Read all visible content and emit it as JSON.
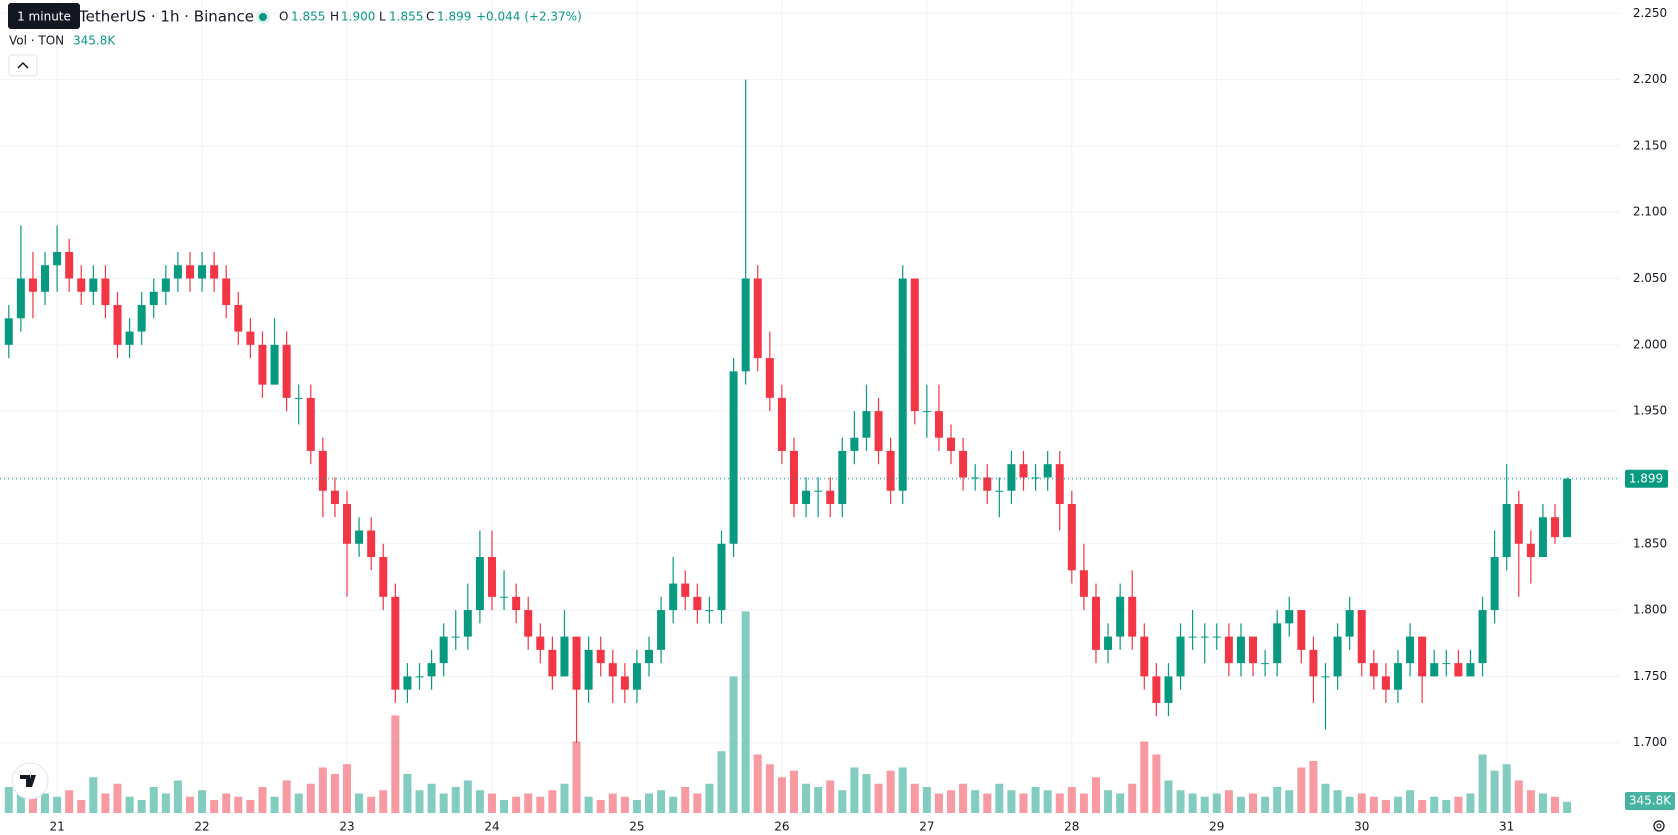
{
  "header": {
    "tooltip": "1 minute",
    "symbol": "TetherUS · 1h · Binance",
    "o_label": "O",
    "o_value": "1.855",
    "h_label": "H",
    "h_value": "1.900",
    "l_label": "L",
    "l_value": "1.855",
    "c_label": "C",
    "c_value": "1.899",
    "change": "+0.044 (+2.37%)",
    "vol_name": "Vol · TON",
    "vol_value": "345.8K"
  },
  "chart_data": {
    "type": "candlestick",
    "categories": [
      null,
      null,
      null,
      null,
      "21",
      null,
      null,
      null,
      null,
      null,
      null,
      null,
      null,
      null,
      null,
      null,
      "22",
      null,
      null,
      null,
      null,
      null,
      null,
      null,
      null,
      null,
      null,
      null,
      "23",
      null,
      null,
      null,
      null,
      null,
      null,
      null,
      null,
      null,
      null,
      null,
      "24",
      null,
      null,
      null,
      null,
      null,
      null,
      null,
      null,
      null,
      null,
      null,
      "25",
      null,
      null,
      null,
      null,
      null,
      null,
      null,
      null,
      null,
      null,
      null,
      "26",
      null,
      null,
      null,
      null,
      null,
      null,
      null,
      null,
      null,
      null,
      null,
      "27",
      null,
      null,
      null,
      null,
      null,
      null,
      null,
      null,
      null,
      null,
      null,
      "28",
      null,
      null,
      null,
      null,
      null,
      null,
      null,
      null,
      null,
      null,
      null,
      "29",
      null,
      null,
      null,
      null,
      null,
      null,
      null,
      null,
      null,
      null,
      null,
      "30",
      null,
      null,
      null,
      null,
      null,
      null,
      null,
      null,
      null,
      null,
      null,
      "31",
      null,
      null,
      null,
      null,
      null
    ],
    "open": [
      2.0,
      2.02,
      2.05,
      2.04,
      2.06,
      2.07,
      2.05,
      2.04,
      2.05,
      2.03,
      2.0,
      2.01,
      2.03,
      2.04,
      2.05,
      2.06,
      2.05,
      2.06,
      2.05,
      2.03,
      2.01,
      2.0,
      1.97,
      2.0,
      1.96,
      1.96,
      1.92,
      1.89,
      1.88,
      1.85,
      1.86,
      1.84,
      1.81,
      1.74,
      1.75,
      1.75,
      1.76,
      1.78,
      1.78,
      1.8,
      1.84,
      1.81,
      1.81,
      1.8,
      1.78,
      1.77,
      1.75,
      1.78,
      1.74,
      1.77,
      1.76,
      1.75,
      1.74,
      1.76,
      1.77,
      1.8,
      1.82,
      1.81,
      1.8,
      1.8,
      1.85,
      1.98,
      2.05,
      1.99,
      1.96,
      1.92,
      1.88,
      1.89,
      1.89,
      1.88,
      1.92,
      1.93,
      1.95,
      1.92,
      1.89,
      2.05,
      1.95,
      1.95,
      1.93,
      1.92,
      1.9,
      1.9,
      1.89,
      1.89,
      1.91,
      1.9,
      1.9,
      1.91,
      1.88,
      1.83,
      1.81,
      1.77,
      1.78,
      1.81,
      1.78,
      1.75,
      1.73,
      1.75,
      1.78,
      1.78,
      1.78,
      1.78,
      1.76,
      1.78,
      1.76,
      1.76,
      1.79,
      1.8,
      1.77,
      1.75,
      1.75,
      1.78,
      1.8,
      1.76,
      1.75,
      1.74,
      1.76,
      1.78,
      1.75,
      1.76,
      1.76,
      1.75,
      1.76,
      1.8,
      1.84,
      1.88,
      1.85,
      1.84,
      1.87,
      1.855
    ],
    "high": [
      2.03,
      2.09,
      2.07,
      2.07,
      2.09,
      2.08,
      2.06,
      2.06,
      2.06,
      2.04,
      2.02,
      2.04,
      2.05,
      2.06,
      2.07,
      2.07,
      2.07,
      2.07,
      2.06,
      2.04,
      2.02,
      2.01,
      2.02,
      2.01,
      1.97,
      1.97,
      1.93,
      1.9,
      1.89,
      1.87,
      1.87,
      1.85,
      1.82,
      1.76,
      1.76,
      1.77,
      1.79,
      1.8,
      1.82,
      1.86,
      1.86,
      1.83,
      1.82,
      1.81,
      1.79,
      1.78,
      1.8,
      1.78,
      1.78,
      1.78,
      1.77,
      1.76,
      1.77,
      1.78,
      1.81,
      1.84,
      1.83,
      1.82,
      1.81,
      1.86,
      1.99,
      2.2,
      2.06,
      2.01,
      1.97,
      1.93,
      1.9,
      1.9,
      1.9,
      1.93,
      1.95,
      1.97,
      1.96,
      1.93,
      2.06,
      2.05,
      1.97,
      1.97,
      1.94,
      1.93,
      1.91,
      1.91,
      1.9,
      1.92,
      1.92,
      1.91,
      1.92,
      1.92,
      1.89,
      1.85,
      1.82,
      1.79,
      1.82,
      1.83,
      1.79,
      1.76,
      1.76,
      1.79,
      1.8,
      1.79,
      1.79,
      1.79,
      1.79,
      1.78,
      1.77,
      1.8,
      1.81,
      1.8,
      1.78,
      1.76,
      1.79,
      1.81,
      1.8,
      1.77,
      1.76,
      1.77,
      1.79,
      1.78,
      1.77,
      1.77,
      1.77,
      1.77,
      1.81,
      1.86,
      1.91,
      1.89,
      1.86,
      1.88,
      1.88,
      1.9
    ],
    "low": [
      1.99,
      2.01,
      2.02,
      2.03,
      2.04,
      2.04,
      2.03,
      2.03,
      2.02,
      1.99,
      1.99,
      2.0,
      2.02,
      2.03,
      2.04,
      2.04,
      2.04,
      2.04,
      2.02,
      2.0,
      1.99,
      1.96,
      1.97,
      1.95,
      1.94,
      1.91,
      1.87,
      1.87,
      1.81,
      1.84,
      1.83,
      1.8,
      1.73,
      1.73,
      1.74,
      1.74,
      1.75,
      1.77,
      1.77,
      1.79,
      1.8,
      1.8,
      1.79,
      1.77,
      1.76,
      1.74,
      1.75,
      1.7,
      1.73,
      1.75,
      1.73,
      1.73,
      1.73,
      1.75,
      1.76,
      1.79,
      1.8,
      1.79,
      1.79,
      1.79,
      1.84,
      1.97,
      1.98,
      1.95,
      1.91,
      1.87,
      1.87,
      1.87,
      1.87,
      1.87,
      1.91,
      1.92,
      1.91,
      1.88,
      1.88,
      1.94,
      1.93,
      1.92,
      1.91,
      1.89,
      1.89,
      1.88,
      1.87,
      1.88,
      1.89,
      1.89,
      1.89,
      1.86,
      1.82,
      1.8,
      1.76,
      1.76,
      1.77,
      1.77,
      1.74,
      1.72,
      1.72,
      1.74,
      1.77,
      1.76,
      1.77,
      1.75,
      1.75,
      1.75,
      1.75,
      1.75,
      1.78,
      1.76,
      1.73,
      1.71,
      1.74,
      1.77,
      1.75,
      1.74,
      1.73,
      1.73,
      1.75,
      1.73,
      1.75,
      1.75,
      1.75,
      1.75,
      1.75,
      1.79,
      1.83,
      1.81,
      1.82,
      1.84,
      1.85,
      1.855
    ],
    "close": [
      2.02,
      2.05,
      2.04,
      2.06,
      2.07,
      2.05,
      2.04,
      2.05,
      2.03,
      2.0,
      2.01,
      2.03,
      2.04,
      2.05,
      2.06,
      2.05,
      2.06,
      2.05,
      2.03,
      2.01,
      2.0,
      1.97,
      2.0,
      1.96,
      1.96,
      1.92,
      1.89,
      1.88,
      1.85,
      1.86,
      1.84,
      1.81,
      1.74,
      1.75,
      1.75,
      1.76,
      1.78,
      1.78,
      1.8,
      1.84,
      1.81,
      1.81,
      1.8,
      1.78,
      1.77,
      1.75,
      1.78,
      1.74,
      1.77,
      1.76,
      1.75,
      1.74,
      1.76,
      1.77,
      1.8,
      1.82,
      1.81,
      1.8,
      1.8,
      1.85,
      1.98,
      2.05,
      1.99,
      1.96,
      1.92,
      1.88,
      1.89,
      1.89,
      1.88,
      1.92,
      1.93,
      1.95,
      1.92,
      1.89,
      2.05,
      1.95,
      1.95,
      1.93,
      1.92,
      1.9,
      1.9,
      1.89,
      1.89,
      1.91,
      1.9,
      1.9,
      1.91,
      1.88,
      1.83,
      1.81,
      1.77,
      1.78,
      1.81,
      1.78,
      1.75,
      1.73,
      1.75,
      1.78,
      1.78,
      1.78,
      1.78,
      1.76,
      1.78,
      1.76,
      1.76,
      1.79,
      1.8,
      1.77,
      1.75,
      1.75,
      1.78,
      1.8,
      1.76,
      1.75,
      1.74,
      1.76,
      1.78,
      1.75,
      1.76,
      1.76,
      1.75,
      1.76,
      1.8,
      1.84,
      1.88,
      1.85,
      1.84,
      1.87,
      1.855,
      1.899
    ],
    "volume": [
      800000,
      1400000,
      900000,
      600000,
      500000,
      700000,
      400000,
      1100000,
      600000,
      900000,
      500000,
      400000,
      800000,
      600000,
      1000000,
      500000,
      700000,
      400000,
      600000,
      500000,
      400000,
      800000,
      500000,
      1000000,
      600000,
      900000,
      1400000,
      1200000,
      1500000,
      600000,
      500000,
      700000,
      3000000,
      1200000,
      700000,
      900000,
      600000,
      800000,
      1000000,
      700000,
      600000,
      400000,
      500000,
      600000,
      500000,
      700000,
      900000,
      2200000,
      500000,
      400000,
      600000,
      500000,
      400000,
      600000,
      700000,
      500000,
      800000,
      600000,
      900000,
      1900000,
      4200000,
      6200000,
      1800000,
      1500000,
      1100000,
      1300000,
      900000,
      800000,
      1000000,
      700000,
      1400000,
      1200000,
      900000,
      1300000,
      1400000,
      900000,
      800000,
      600000,
      700000,
      900000,
      700000,
      600000,
      900000,
      700000,
      600000,
      800000,
      700000,
      600000,
      800000,
      600000,
      1100000,
      700000,
      600000,
      900000,
      2200000,
      1800000,
      1000000,
      700000,
      600000,
      500000,
      600000,
      700000,
      500000,
      600000,
      500000,
      800000,
      700000,
      1400000,
      1600000,
      900000,
      700000,
      500000,
      600000,
      500000,
      400000,
      500000,
      700000,
      400000,
      500000,
      400000,
      500000,
      600000,
      1800000,
      1300000,
      1500000,
      1000000,
      700000,
      600000,
      500000,
      345800
    ],
    "last_price_label": "1.899",
    "last_volume_label": "345.8K",
    "ylim": [
      1.647,
      2.26
    ],
    "yticks": [
      {
        "value": 1.7,
        "label": "1.700"
      },
      {
        "value": 1.75,
        "label": "1.750"
      },
      {
        "value": 1.8,
        "label": "1.800"
      },
      {
        "value": 1.85,
        "label": "1.850"
      },
      {
        "value": 1.9,
        "label": "1.900"
      },
      {
        "value": 1.95,
        "label": "1.950"
      },
      {
        "value": 2.0,
        "label": "2.000"
      },
      {
        "value": 2.05,
        "label": "2.050"
      },
      {
        "value": 2.1,
        "label": "2.100"
      },
      {
        "value": 2.15,
        "label": "2.150"
      },
      {
        "value": 2.2,
        "label": "2.200"
      },
      {
        "value": 2.25,
        "label": "2.250"
      }
    ],
    "volume_lim": [
      0,
      25000000
    ],
    "up_color": "#089981",
    "down_color": "#f23645",
    "grid": true
  }
}
